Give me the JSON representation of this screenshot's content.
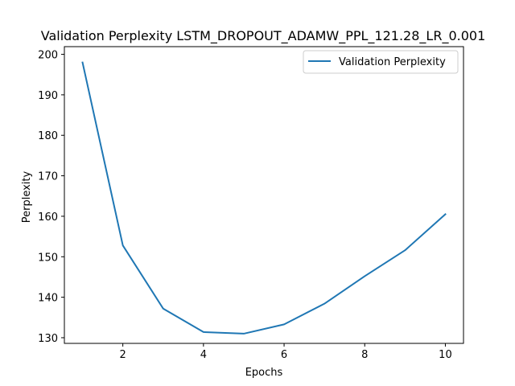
{
  "chart_data": {
    "type": "line",
    "title": "Validation Perplexity LSTM_DROPOUT_ADAMW_PPL_121.28_LR_0.001",
    "xlabel": "Epochs",
    "ylabel": "Perplexity",
    "x": [
      1,
      2,
      3,
      4,
      5,
      6,
      7,
      8,
      9,
      10
    ],
    "series": [
      {
        "name": "Validation Perplexity",
        "values": [
          198.0,
          152.8,
          137.2,
          131.4,
          131.0,
          133.3,
          138.4,
          145.2,
          151.6,
          160.5
        ],
        "color": "#1f77b4"
      }
    ],
    "xlim": [
      0.55,
      10.45
    ],
    "ylim": [
      128.6,
      201.9
    ],
    "xticks": [
      2,
      4,
      6,
      8,
      10
    ],
    "yticks": [
      130,
      140,
      150,
      160,
      170,
      180,
      190,
      200
    ],
    "grid": false,
    "legend_position": "top-right"
  }
}
